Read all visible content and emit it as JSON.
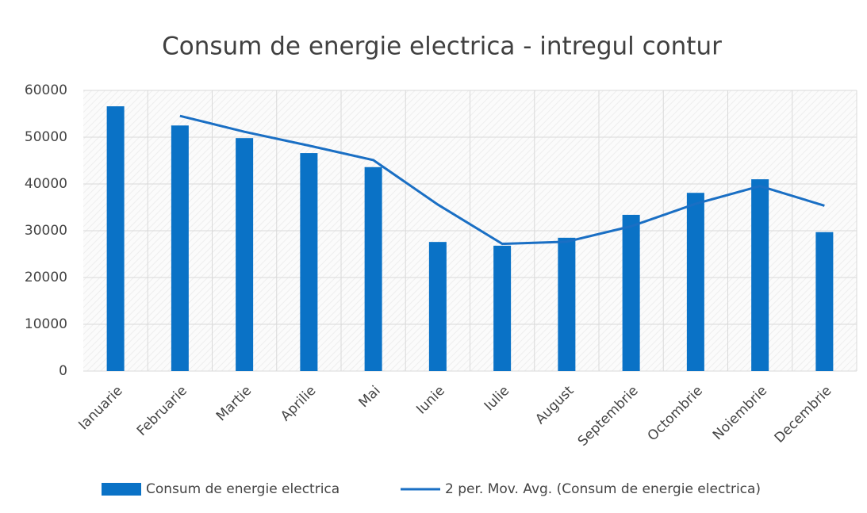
{
  "chart_data": {
    "type": "bar",
    "title": "Consum de energie electrica - intregul contur",
    "categories": [
      "Ianuarie",
      "Februarie",
      "Martie",
      "Aprilie",
      "Mai",
      "Iunie",
      "Iulie",
      "August",
      "Septembrie",
      "Octombrie",
      "Noiembrie",
      "Decembrie"
    ],
    "series": [
      {
        "name": "Consum de energie electrica",
        "type": "bar",
        "color": "#0a72c6",
        "values": [
          56600,
          52500,
          49800,
          46600,
          43600,
          27600,
          26800,
          28500,
          33400,
          38100,
          41000,
          29700
        ]
      },
      {
        "name": "2 per. Mov. Avg. (Consum de energie electrica)",
        "type": "line",
        "color": "#1a6fc4",
        "values": [
          null,
          54550,
          51150,
          48200,
          45100,
          35600,
          27200,
          27650,
          30950,
          35750,
          39550,
          35350
        ]
      }
    ],
    "ylim": [
      0,
      60000
    ],
    "yticks": [
      0,
      10000,
      20000,
      30000,
      40000,
      50000,
      60000
    ],
    "grid": true,
    "legend": "bottom"
  }
}
